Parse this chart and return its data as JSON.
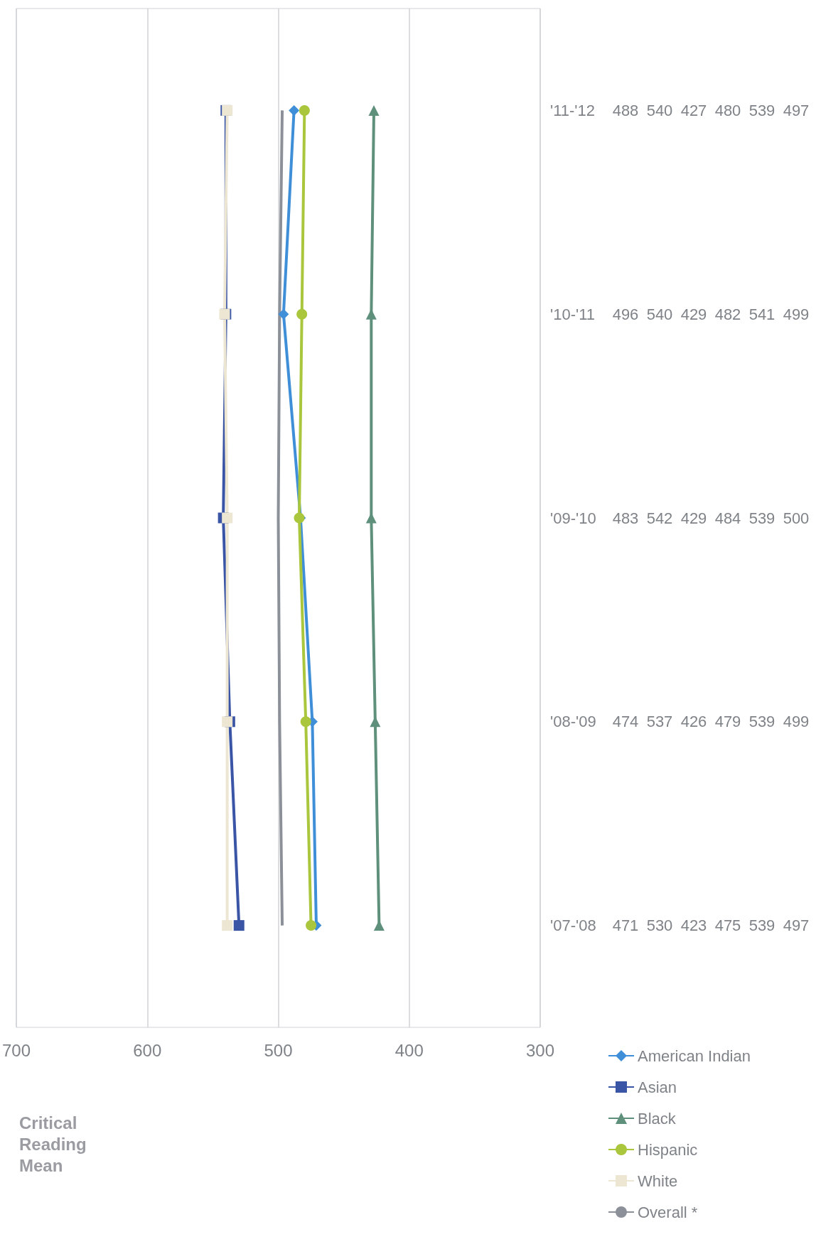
{
  "chart_data": {
    "type": "line",
    "title": "Critical Reading Mean",
    "orientation": "horizontal",
    "categories": [
      "'11-'12",
      "'10-'11",
      "'09-'10",
      "'08-'09",
      "'07-'08"
    ],
    "series": [
      {
        "name": "American Indian",
        "color": "#3f8fd8",
        "marker": "diamond",
        "values": [
          488,
          496,
          483,
          474,
          471
        ]
      },
      {
        "name": "Asian",
        "color": "#3a55a6",
        "marker": "square",
        "values": [
          540,
          540,
          542,
          537,
          530
        ]
      },
      {
        "name": "Black",
        "color": "#5e907c",
        "marker": "triangle",
        "values": [
          427,
          429,
          429,
          426,
          423
        ]
      },
      {
        "name": "Hispanic",
        "color": "#a9c63c",
        "marker": "circle",
        "values": [
          480,
          482,
          484,
          479,
          475
        ]
      },
      {
        "name": "White",
        "color": "#ede6d2",
        "marker": "square",
        "values": [
          539,
          541,
          539,
          539,
          539
        ]
      },
      {
        "name": "Overall *",
        "color": "#8c9098",
        "marker": "none",
        "values": [
          497,
          499,
          500,
          499,
          497
        ]
      }
    ],
    "xlim": [
      700,
      300
    ],
    "xticks": [
      300,
      400,
      500,
      600,
      700
    ],
    "grid": "x",
    "legend": "bottom right",
    "data_labels": true
  }
}
